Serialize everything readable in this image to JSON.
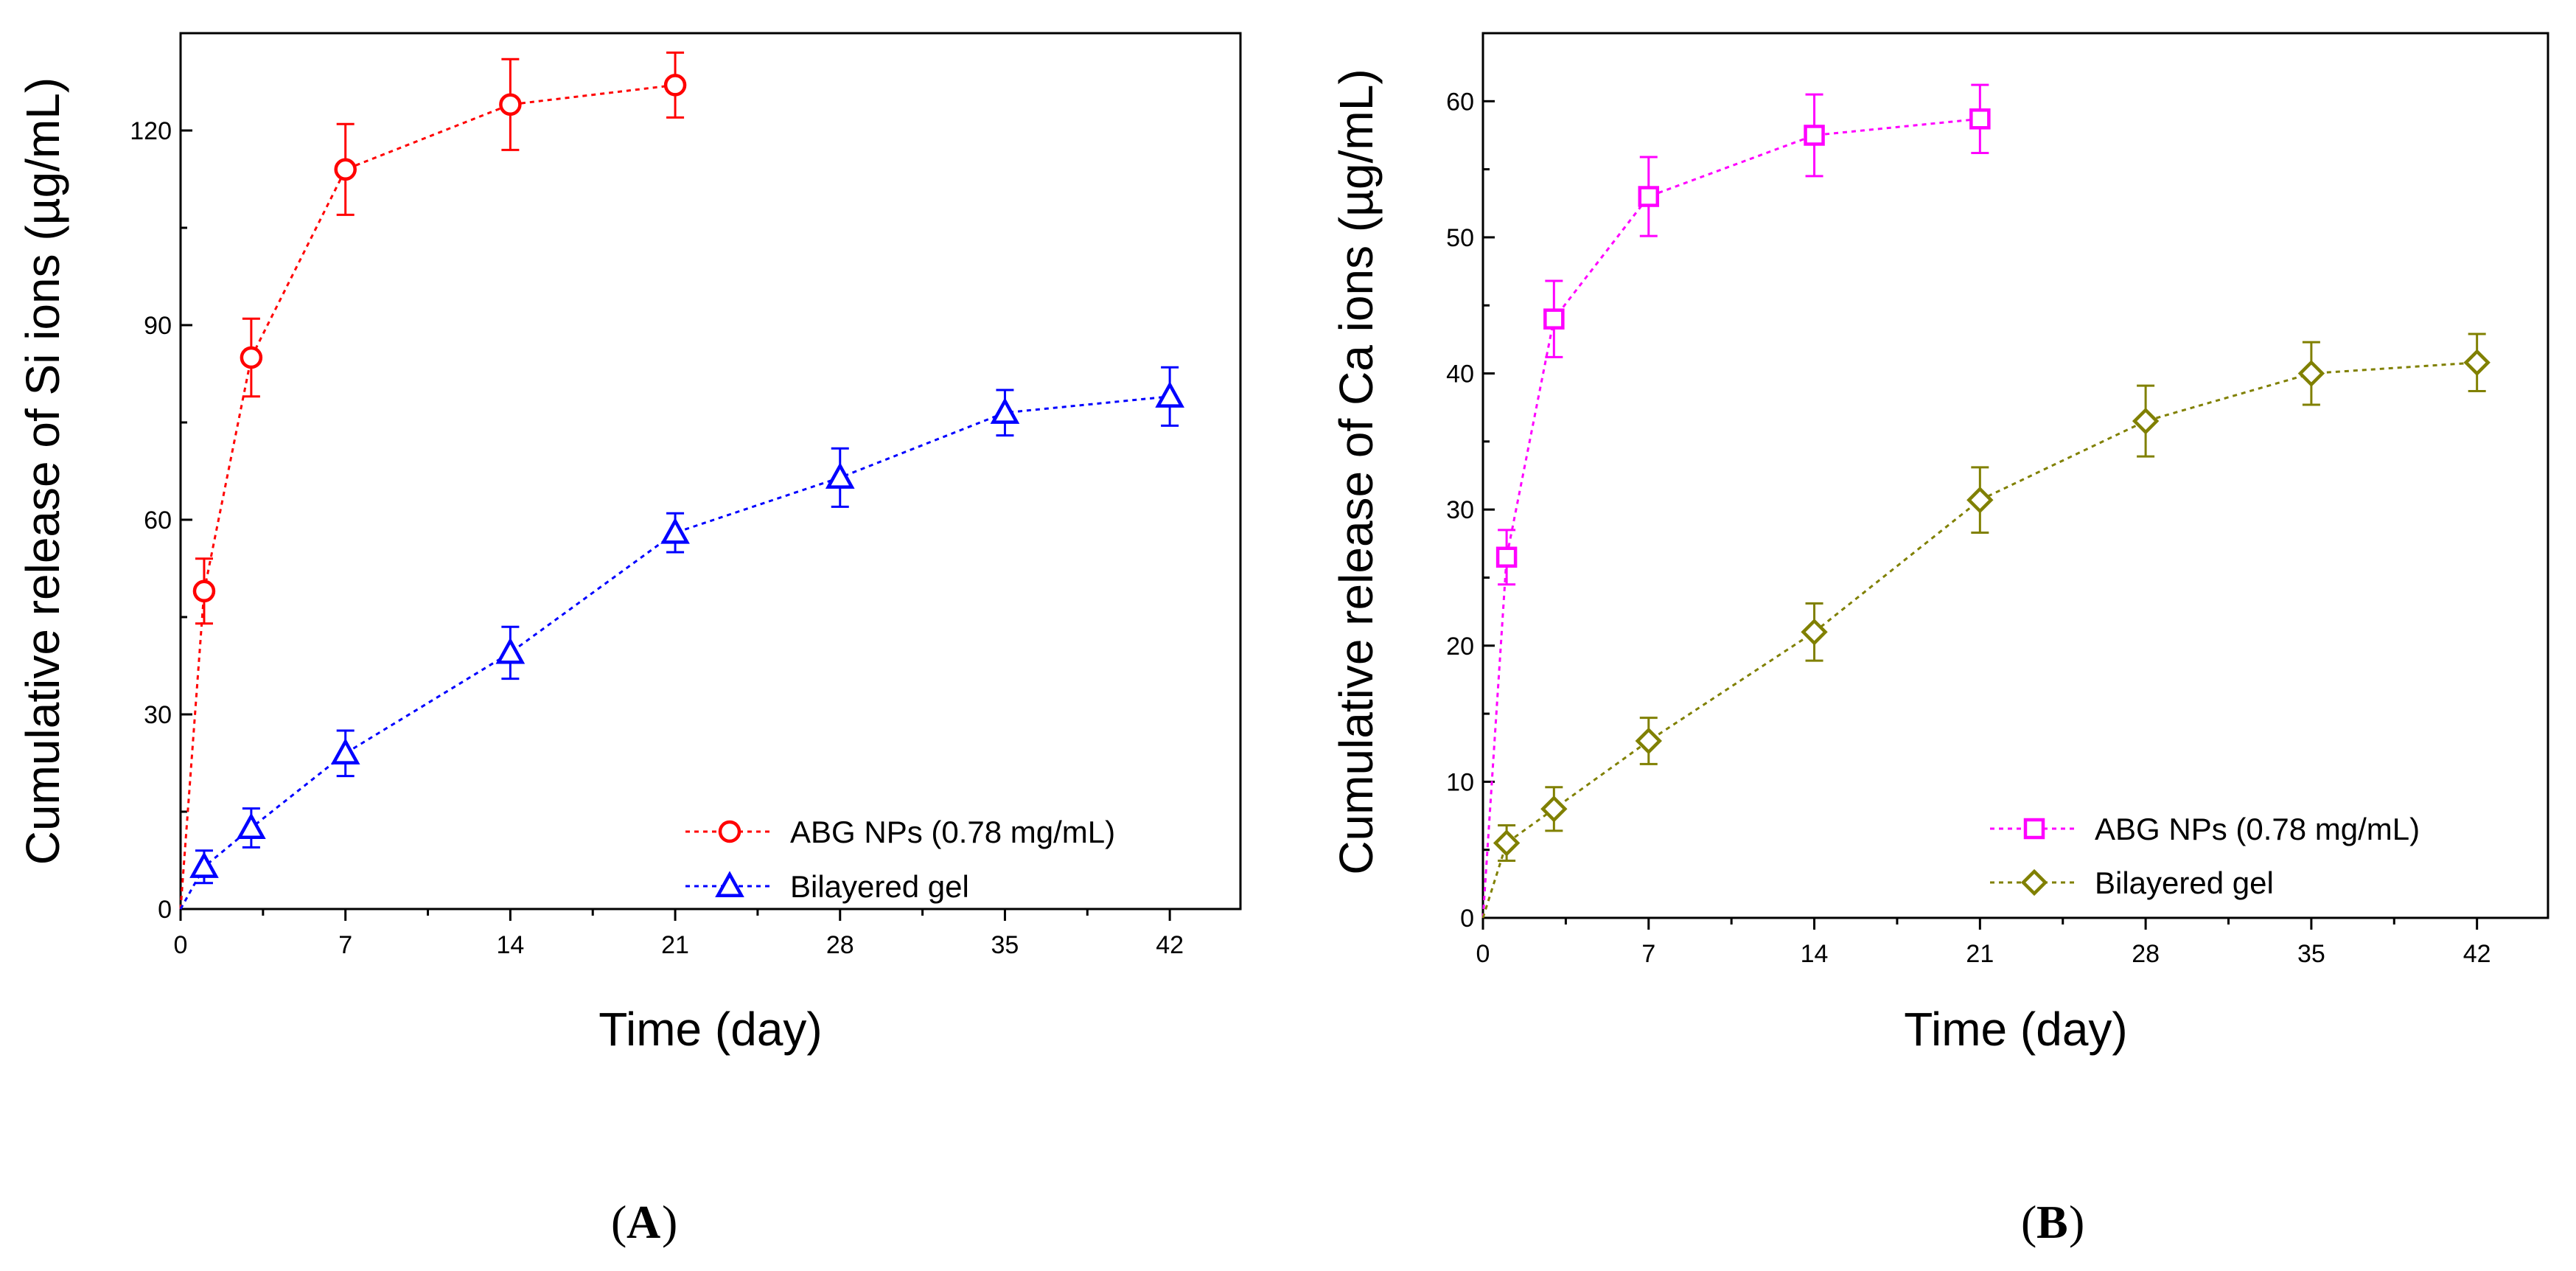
{
  "chart_data": [
    {
      "type": "line",
      "panel_label": "A",
      "title": "",
      "xlabel": "Time (day)",
      "ylabel": "Cumulative release of Si ions (µg/mL)",
      "xlim": [
        0,
        45
      ],
      "ylim": [
        0,
        135
      ],
      "xticks": [
        0,
        7,
        14,
        21,
        28,
        35,
        42
      ],
      "xtick_labels": [
        "0",
        "7",
        "14",
        "21",
        "28",
        "35",
        "42"
      ],
      "yticks": [
        0,
        30,
        60,
        90,
        120
      ],
      "ytick_labels": [
        "0",
        "30",
        "60",
        "90",
        "120"
      ],
      "grid": false,
      "legend_position": "bottom-right",
      "series": [
        {
          "name": "ABG NPs (0.78 mg/mL)",
          "color": "#ff0000",
          "marker": "circle",
          "x": [
            0,
            1,
            3,
            7,
            14,
            21
          ],
          "y": [
            0,
            49,
            85,
            114,
            124,
            127
          ],
          "err": [
            0,
            5,
            6,
            7,
            7,
            5
          ]
        },
        {
          "name": "Bilayered gel",
          "color": "#0000ff",
          "marker": "triangle",
          "x": [
            0,
            1,
            3,
            7,
            14,
            21,
            28,
            35,
            42
          ],
          "y": [
            0,
            6.5,
            12.5,
            24,
            39.5,
            58,
            66.5,
            76.5,
            79
          ],
          "err": [
            0,
            2.5,
            3,
            3.5,
            4,
            3,
            4.5,
            3.5,
            4.5
          ]
        }
      ]
    },
    {
      "type": "line",
      "panel_label": "B",
      "title": "",
      "xlabel": "Time (day)",
      "ylabel": "Cumulative release of Ca ions (µg/mL)",
      "xlim": [
        0,
        45
      ],
      "ylim": [
        0,
        65
      ],
      "xticks": [
        0,
        7,
        14,
        21,
        28,
        35,
        42
      ],
      "xtick_labels": [
        "0",
        "7",
        "14",
        "21",
        "28",
        "35",
        "42"
      ],
      "yticks": [
        0,
        10,
        20,
        30,
        40,
        50,
        60
      ],
      "ytick_labels": [
        "0",
        "10",
        "20",
        "30",
        "40",
        "50",
        "60"
      ],
      "grid": false,
      "legend_position": "bottom-right",
      "series": [
        {
          "name": "ABG NPs (0.78 mg/mL)",
          "color": "#ff00ff",
          "marker": "square",
          "x": [
            0,
            1,
            3,
            7,
            14,
            21
          ],
          "y": [
            0,
            26.5,
            44,
            53,
            57.5,
            58.7
          ],
          "err": [
            0,
            2,
            2.8,
            2.9,
            3,
            2.5
          ]
        },
        {
          "name": "Bilayered gel",
          "color": "#808000",
          "marker": "diamond",
          "x": [
            0,
            1,
            3,
            7,
            14,
            21,
            28,
            35,
            42
          ],
          "y": [
            0,
            5.5,
            8,
            13,
            21,
            30.7,
            36.5,
            40,
            40.8
          ],
          "err": [
            0,
            1.3,
            1.6,
            1.7,
            2.1,
            2.4,
            2.6,
            2.3,
            2.1
          ]
        }
      ]
    }
  ]
}
